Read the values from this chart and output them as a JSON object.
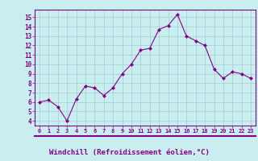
{
  "x": [
    0,
    1,
    2,
    3,
    4,
    5,
    6,
    7,
    8,
    9,
    10,
    11,
    12,
    13,
    14,
    15,
    16,
    17,
    18,
    19,
    20,
    21,
    22,
    23
  ],
  "y": [
    6.0,
    6.2,
    5.5,
    4.0,
    6.3,
    7.7,
    7.5,
    6.7,
    7.5,
    9.0,
    10.0,
    11.5,
    11.7,
    13.7,
    14.1,
    15.3,
    13.0,
    12.5,
    12.0,
    9.5,
    8.5,
    9.2,
    9.0,
    8.5
  ],
  "line_color": "#880088",
  "marker": "D",
  "marker_size": 2.0,
  "bg_color": "#c8eef0",
  "grid_color": "#a0ccd0",
  "xlabel": "Windchill (Refroidissement éolien,°C)",
  "xlabel_color": "#880088",
  "xlabel_fontsize": 6.5,
  "yticks": [
    4,
    5,
    6,
    7,
    8,
    9,
    10,
    11,
    12,
    13,
    14,
    15
  ],
  "xlim": [
    -0.5,
    23.5
  ],
  "ylim": [
    3.5,
    15.8
  ],
  "tick_color": "#880088",
  "spine_color": "#880088",
  "line_width": 0.8
}
